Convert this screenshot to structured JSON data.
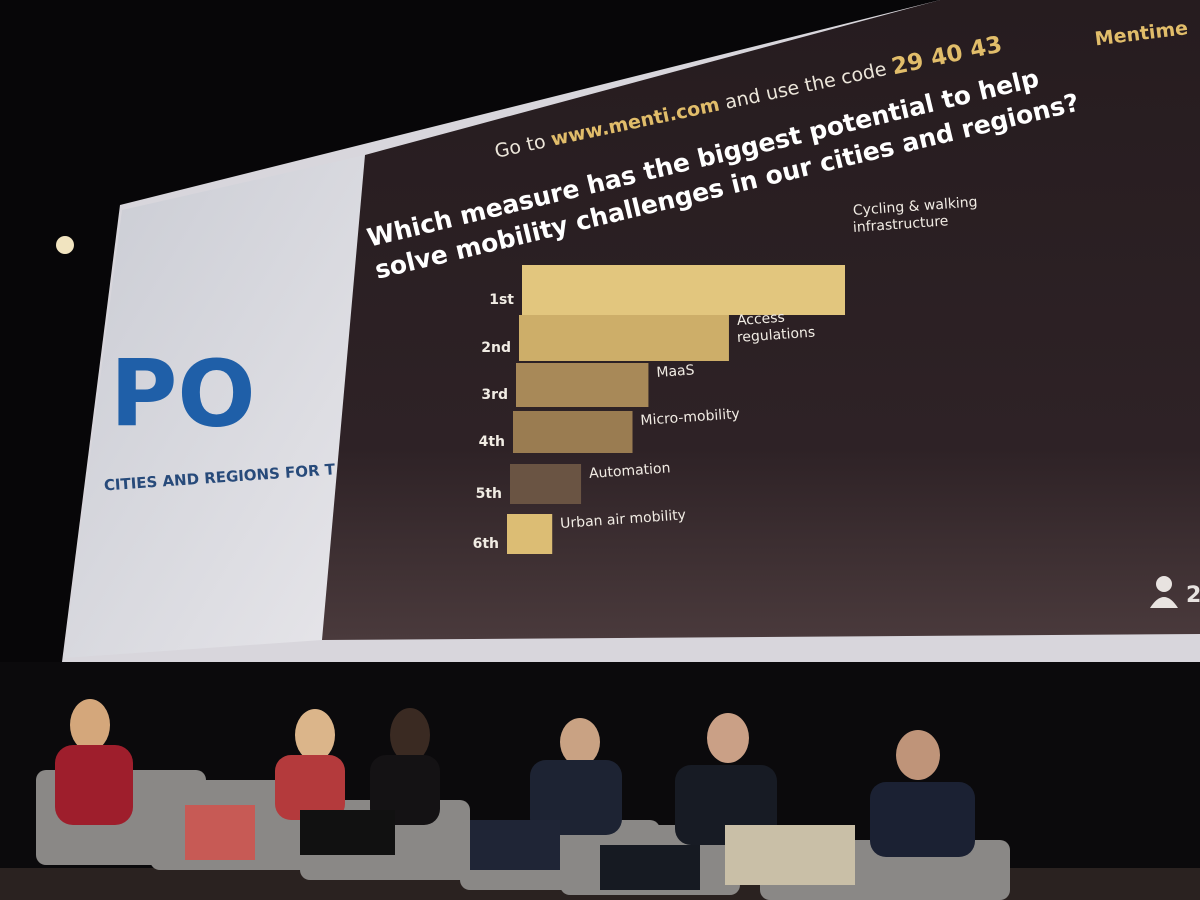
{
  "chart_data": {
    "type": "bar",
    "header": {
      "prefix": "Go to",
      "site": "www.menti.com",
      "middle": "and use the code",
      "code": "29 40 43"
    },
    "brand": "Mentime",
    "title": [
      "Which measure has the biggest potential to help",
      "solve mobility challenges in our cities and regions?"
    ],
    "categories": [
      "1st",
      "2nd",
      "3rd",
      "4th",
      "5th",
      "6th"
    ],
    "option_labels": [
      [
        "Cycling & walking",
        "infrastructure"
      ],
      [
        "Access",
        "regulations"
      ],
      [
        "MaaS"
      ],
      [
        "Micro-mobility"
      ],
      [
        "Automation"
      ],
      [
        "Urban air mobility"
      ]
    ],
    "values": [
      100,
      65,
      41,
      37,
      22,
      14
    ],
    "colors": [
      "#e2c67e",
      "#cdae69",
      "#a88958",
      "#9a7c51",
      "#6a5443",
      "#dcbd74"
    ],
    "participants": "2",
    "logo": {
      "mark": "PO",
      "tagline": "CITIES AND REGIONS FOR T"
    }
  }
}
